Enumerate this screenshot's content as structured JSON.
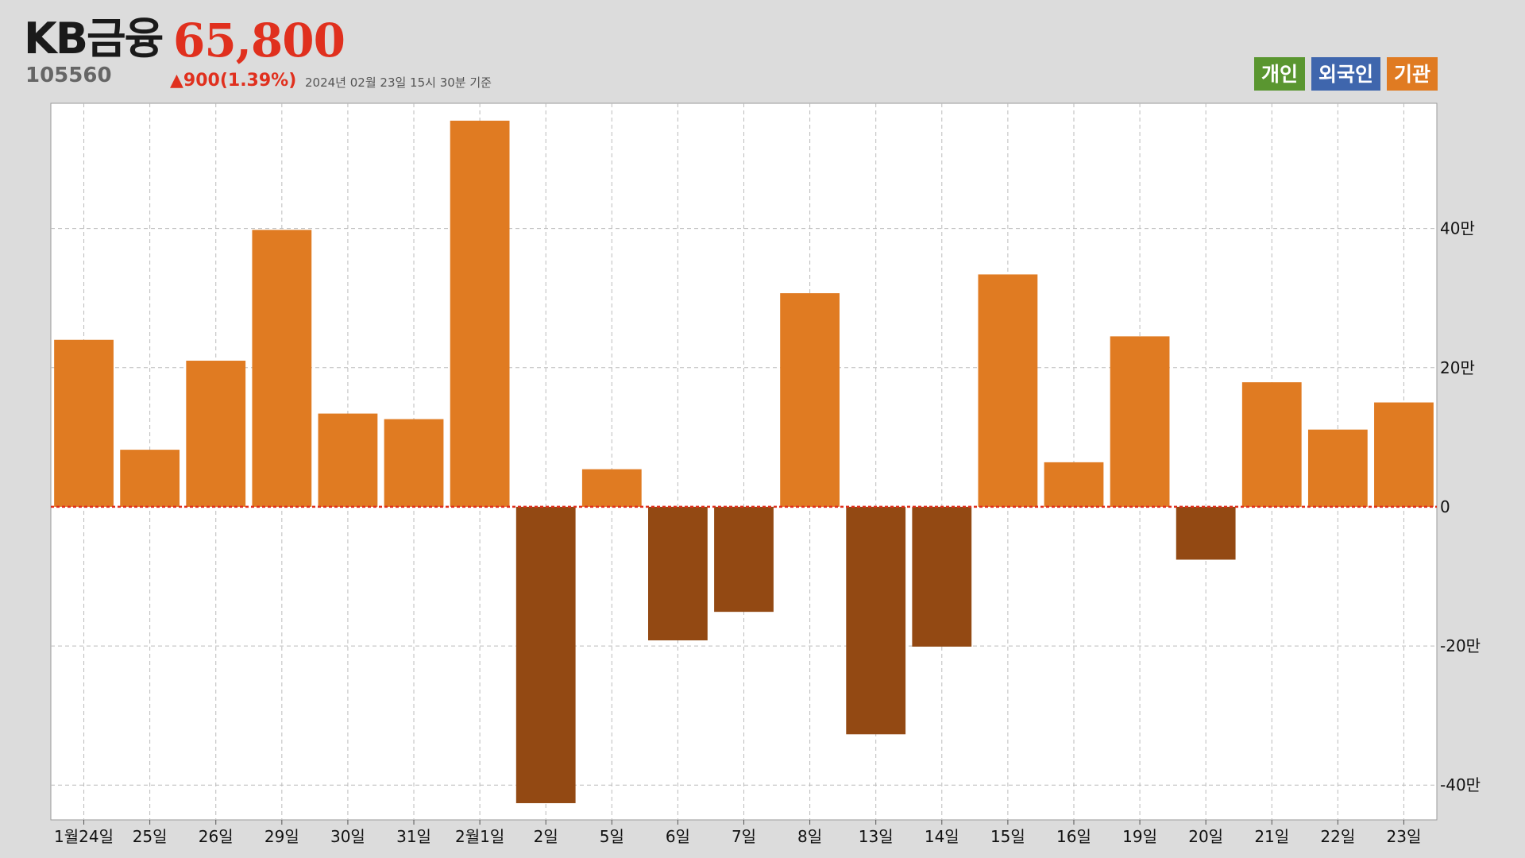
{
  "header": {
    "stock_name": "KB금융",
    "stock_code": "105560",
    "price": "65,800",
    "change": "▲900(1.39%)",
    "timestamp": "2024년 02월 23일 15시 30분 기준"
  },
  "legend": {
    "items": [
      {
        "label": "개인",
        "color": "#5a9630"
      },
      {
        "label": "외국인",
        "color": "#3f66ad"
      },
      {
        "label": "기관",
        "color": "#e07b22"
      }
    ]
  },
  "colors": {
    "positive_bar": "#e07b22",
    "negative_bar": "#934913",
    "zero_line": "#e0301e",
    "grid": "#bbbbbb",
    "plot_bg": "#ffffff"
  },
  "chart_data": {
    "type": "bar",
    "series": [
      {
        "name": "기관",
        "values": [
          240000,
          82000,
          210000,
          398000,
          134000,
          126000,
          555000,
          -426000,
          54000,
          -192000,
          -151000,
          307000,
          -327000,
          -201000,
          334000,
          64000,
          245000,
          -76000,
          179000,
          111000,
          150000
        ]
      }
    ],
    "categories": [
      "1월24일",
      "25일",
      "26일",
      "29일",
      "30일",
      "31일",
      "2월1일",
      "2일",
      "5일",
      "6일",
      "7일",
      "8일",
      "13일",
      "14일",
      "15일",
      "16일",
      "19일",
      "20일",
      "21일",
      "22일",
      "23일"
    ],
    "ylim": [
      -450000,
      580000
    ],
    "yticks": [
      400000,
      200000,
      0,
      -200000,
      -400000
    ],
    "ytick_labels": [
      "40만",
      "20만",
      "0",
      "-20만",
      "-40만"
    ],
    "grid": true,
    "title": "",
    "xlabel": "",
    "ylabel": ""
  }
}
